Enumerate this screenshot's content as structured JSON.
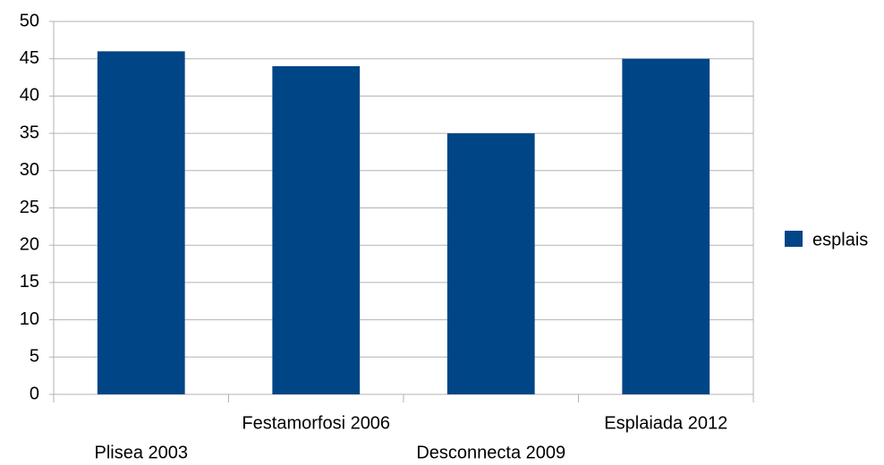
{
  "chart_data": {
    "type": "bar",
    "categories": [
      "Plisea 2003",
      "Festamorfosi 2006",
      "Desconnecta 2009",
      "Esplaiada 2012"
    ],
    "series": [
      {
        "name": "esplais",
        "color": "#004586",
        "values": [
          46,
          44,
          35,
          45
        ]
      }
    ],
    "ylim": [
      0,
      50
    ],
    "yticks": [
      0,
      5,
      10,
      15,
      20,
      25,
      30,
      35,
      40,
      45,
      50
    ],
    "grid": true,
    "legend": "right"
  }
}
